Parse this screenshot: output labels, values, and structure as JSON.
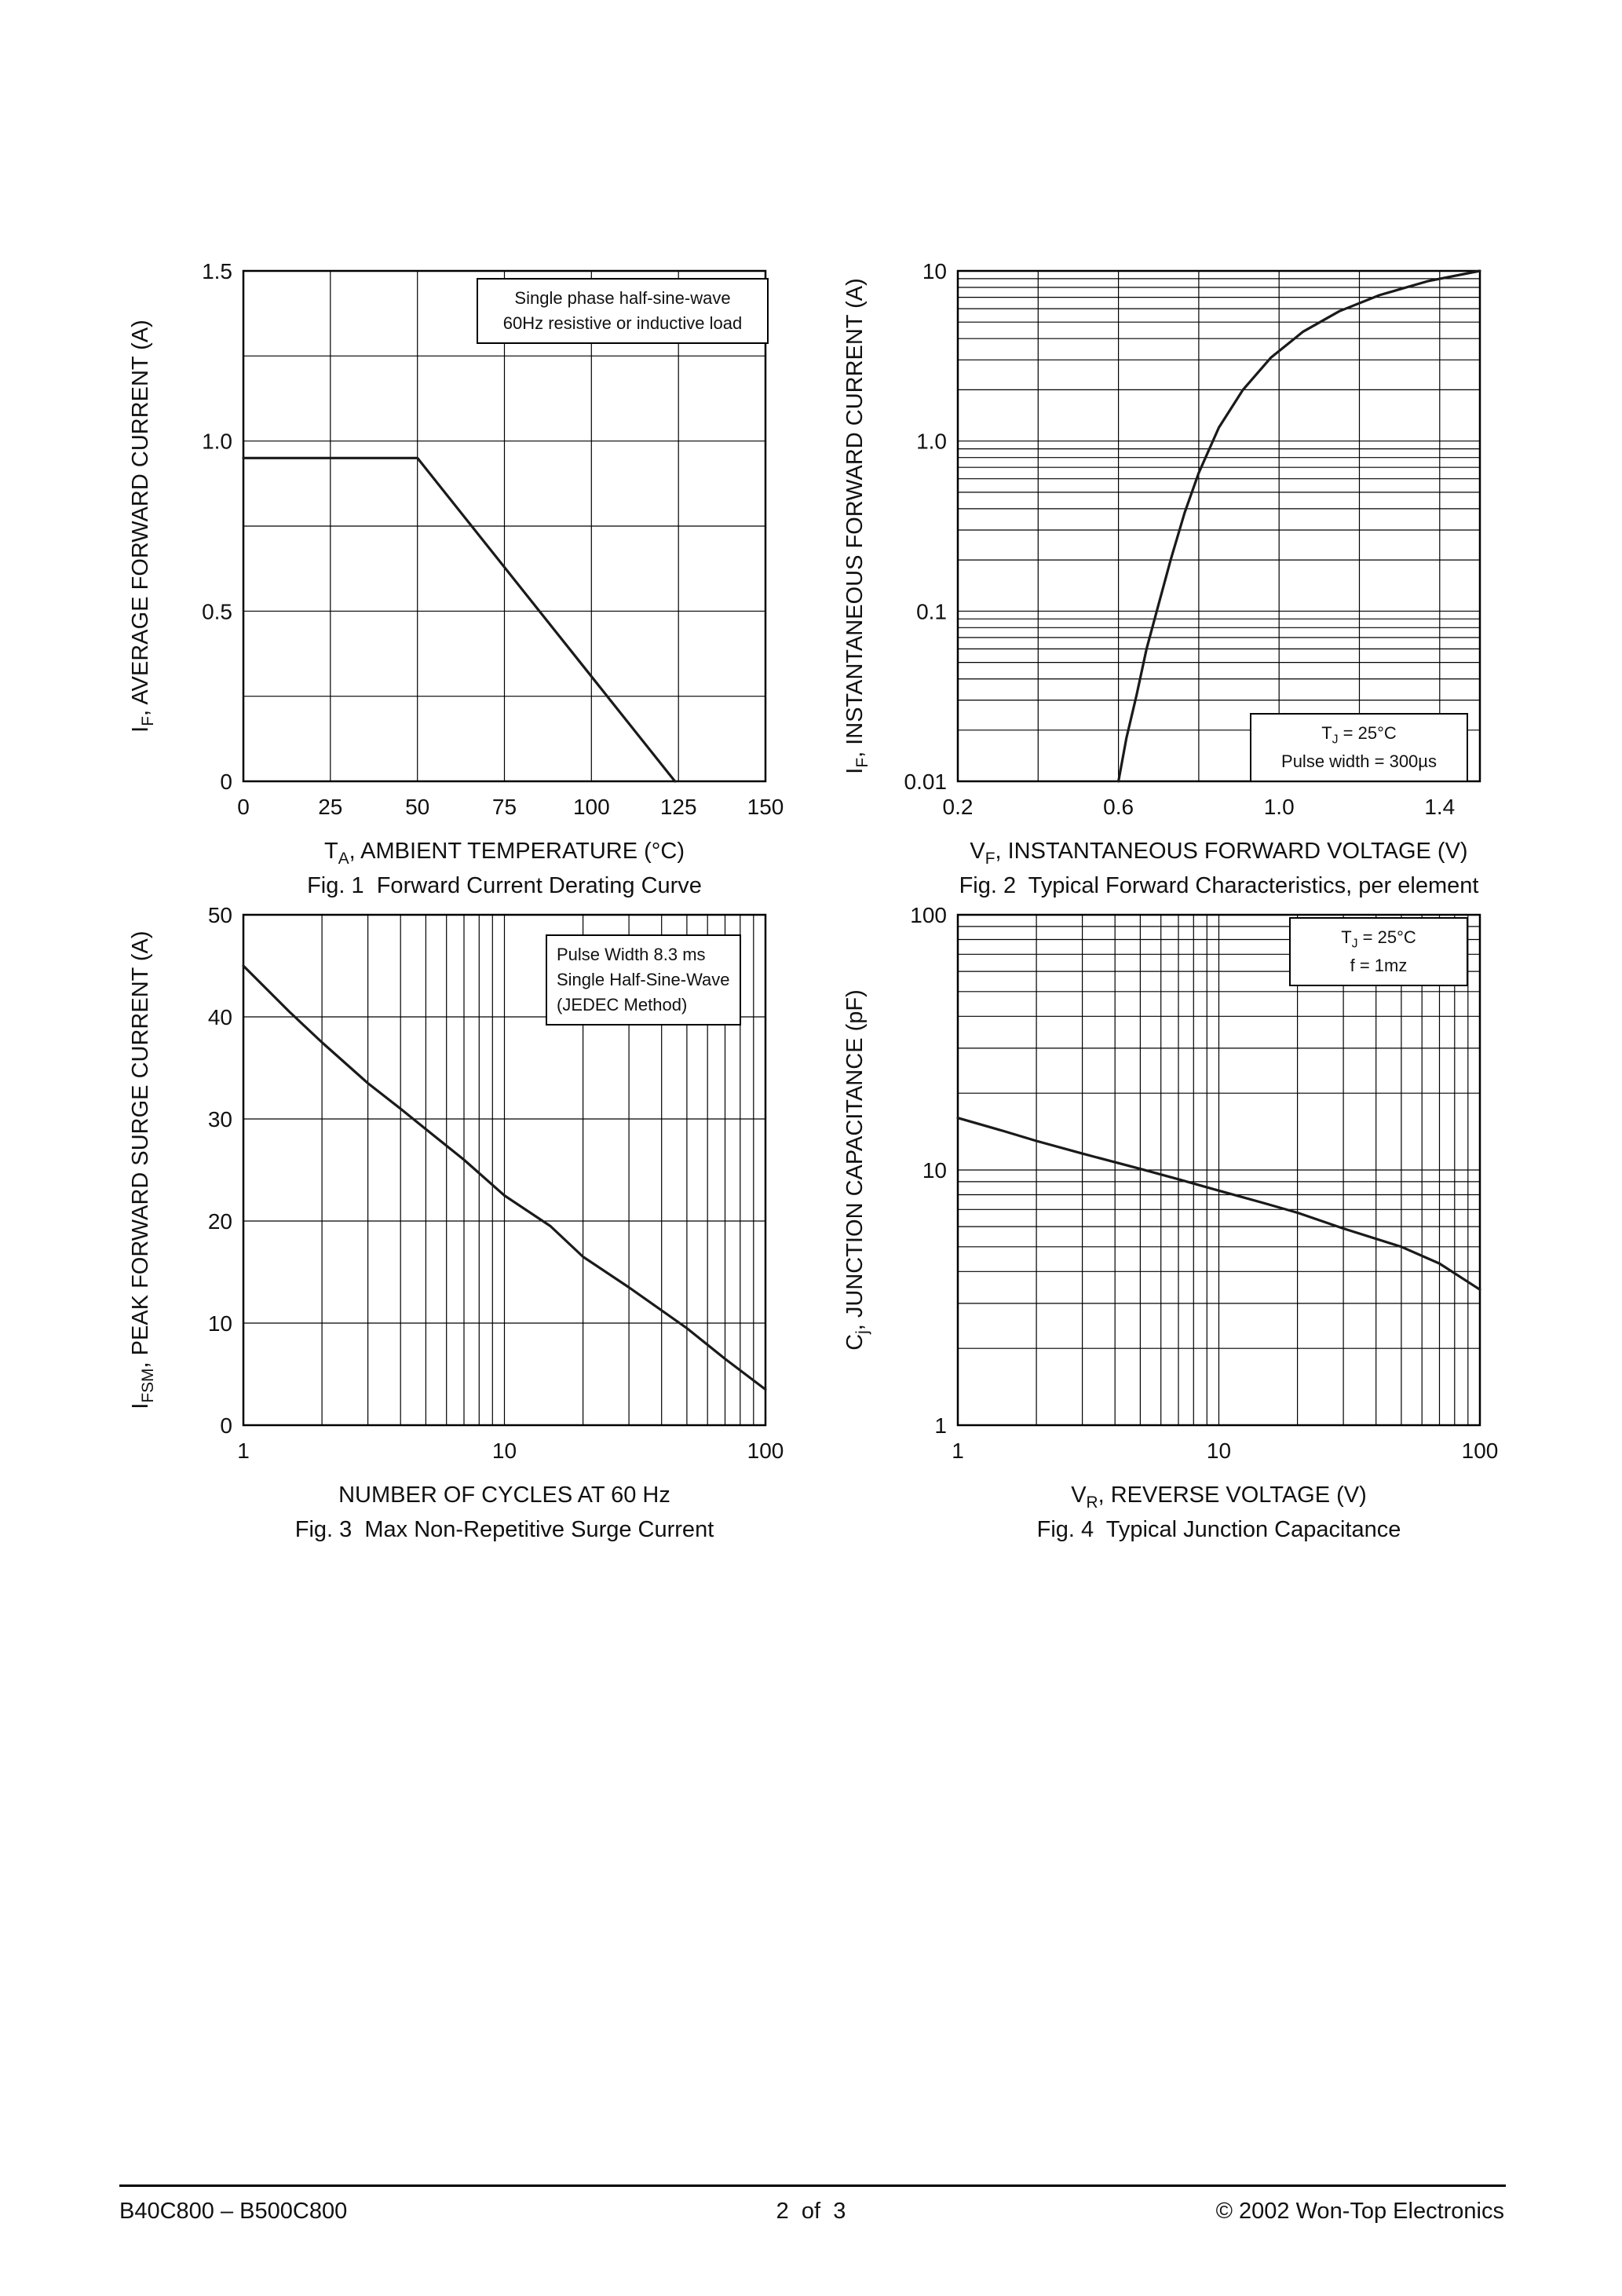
{
  "page": {
    "footer": {
      "left": "B40C800 – B500C800",
      "center": "2  of  3",
      "right": "© 2002 Won-Top Electronics"
    }
  },
  "chart_data": [
    {
      "type": "line",
      "caption": "Fig. 1  Forward Current Derating Curve",
      "xlabel": {
        "pre": "T",
        "sub": "A",
        "rest": ", AMBIENT TEMPERATURE (°C)"
      },
      "ylabel": {
        "pre": "I",
        "sub": "F",
        "rest": ", AVERAGE FORWARD CURRENT (A)"
      },
      "x_scale": "linear",
      "y_scale": "linear",
      "xlim": [
        0,
        150
      ],
      "ylim": [
        0,
        1.5
      ],
      "x_gridlines": [
        25,
        50,
        75,
        100,
        125
      ],
      "y_gridlines": [
        0.25,
        0.5,
        0.75,
        1.0,
        1.25
      ],
      "x_ticks": [
        [
          0,
          "0"
        ],
        [
          25,
          "25"
        ],
        [
          50,
          "50"
        ],
        [
          75,
          "75"
        ],
        [
          100,
          "100"
        ],
        [
          125,
          "125"
        ],
        [
          150,
          "150"
        ]
      ],
      "y_ticks": [
        [
          0,
          "0"
        ],
        [
          0.5,
          "0.5"
        ],
        [
          1.0,
          "1.0"
        ],
        [
          1.5,
          "1.5"
        ]
      ],
      "series": [
        {
          "name": "average forward current derating",
          "points": [
            [
              0,
              0.95
            ],
            [
              50,
              0.95
            ],
            [
              124,
              0
            ]
          ]
        }
      ],
      "annotation": [
        "Single phase half-sine-wave",
        "60Hz resistive or inductive load"
      ]
    },
    {
      "type": "line",
      "caption": "Fig. 2  Typical Forward Characteristics, per element",
      "xlabel": {
        "pre": "V",
        "sub": "F",
        "rest": ", INSTANTANEOUS FORWARD VOLTAGE (V)"
      },
      "ylabel": {
        "pre": "I",
        "sub": "F",
        "rest": ", INSTANTANEOUS FORWARD CURRENT (A)"
      },
      "x_scale": "linear",
      "y_scale": "log",
      "xlim": [
        0.2,
        1.5
      ],
      "ylim": [
        0.01,
        10
      ],
      "x_gridlines": [
        0.4,
        0.6,
        0.8,
        1.0,
        1.2,
        1.4
      ],
      "x_ticks": [
        [
          0.2,
          "0.2"
        ],
        [
          0.6,
          "0.6"
        ],
        [
          1.0,
          "1.0"
        ],
        [
          1.4,
          "1.4"
        ]
      ],
      "y_ticks": [
        [
          0.01,
          "0.01"
        ],
        [
          0.1,
          "0.1"
        ],
        [
          1,
          "1.0"
        ],
        [
          10,
          "10"
        ]
      ],
      "series": [
        {
          "name": "typical forward characteristic",
          "points": [
            [
              0.6,
              0.01
            ],
            [
              0.62,
              0.018
            ],
            [
              0.645,
              0.032
            ],
            [
              0.67,
              0.06
            ],
            [
              0.7,
              0.11
            ],
            [
              0.73,
              0.2
            ],
            [
              0.765,
              0.38
            ],
            [
              0.8,
              0.65
            ],
            [
              0.85,
              1.2
            ],
            [
              0.91,
              2.0
            ],
            [
              0.98,
              3.1
            ],
            [
              1.06,
              4.4
            ],
            [
              1.15,
              5.8
            ],
            [
              1.25,
              7.2
            ],
            [
              1.37,
              8.7
            ],
            [
              1.5,
              10
            ]
          ]
        }
      ],
      "annotation": [
        {
          "pre": "T",
          "sub": "J",
          "rest": " = 25°C"
        },
        "Pulse width = 300µs"
      ]
    },
    {
      "type": "line",
      "caption": "Fig. 3  Max Non-Repetitive Surge Current",
      "xlabel": {
        "pre": "",
        "sub": "",
        "rest": "NUMBER OF CYCLES AT 60 Hz"
      },
      "ylabel": {
        "pre": "I",
        "sub": "FSM",
        "rest": ", PEAK FORWARD SURGE CURRENT (A)"
      },
      "x_scale": "log",
      "y_scale": "linear",
      "xlim": [
        1,
        100
      ],
      "ylim": [
        0,
        50
      ],
      "y_gridlines": [
        10,
        20,
        30,
        40
      ],
      "x_ticks": [
        [
          1,
          "1"
        ],
        [
          10,
          "10"
        ],
        [
          100,
          "100"
        ]
      ],
      "y_ticks": [
        [
          0,
          "0"
        ],
        [
          10,
          "10"
        ],
        [
          20,
          "20"
        ],
        [
          30,
          "30"
        ],
        [
          40,
          "40"
        ],
        [
          50,
          "50"
        ]
      ],
      "series": [
        {
          "name": "peak forward surge current",
          "points": [
            [
              1,
              45
            ],
            [
              1.5,
              40.5
            ],
            [
              2,
              37.5
            ],
            [
              3,
              33.5
            ],
            [
              4,
              31
            ],
            [
              5,
              29
            ],
            [
              7,
              26
            ],
            [
              10,
              22.5
            ],
            [
              15,
              19.5
            ],
            [
              20,
              16.5
            ],
            [
              30,
              13.5
            ],
            [
              50,
              9.5
            ],
            [
              70,
              6.5
            ],
            [
              100,
              3.5
            ]
          ]
        }
      ],
      "annotation": [
        "Pulse Width 8.3 ms",
        "Single Half-Sine-Wave",
        "(JEDEC Method)"
      ]
    },
    {
      "type": "line",
      "caption": "Fig. 4  Typical Junction Capacitance",
      "xlabel": {
        "pre": "V",
        "sub": "R",
        "rest": ", REVERSE VOLTAGE (V)"
      },
      "ylabel": {
        "pre": "C",
        "sub": "j",
        "rest": ", JUNCTION CAPACITANCE (pF)"
      },
      "x_scale": "log",
      "y_scale": "log",
      "xlim": [
        1,
        100
      ],
      "ylim": [
        1,
        100
      ],
      "x_ticks": [
        [
          1,
          "1"
        ],
        [
          10,
          "10"
        ],
        [
          100,
          "100"
        ]
      ],
      "y_ticks": [
        [
          1,
          "1"
        ],
        [
          10,
          "10"
        ],
        [
          100,
          "100"
        ]
      ],
      "series": [
        {
          "name": "junction capacitance",
          "points": [
            [
              1,
              16
            ],
            [
              1.5,
              14.2
            ],
            [
              2,
              13
            ],
            [
              3,
              11.6
            ],
            [
              5,
              10.1
            ],
            [
              7,
              9.2
            ],
            [
              10,
              8.3
            ],
            [
              15,
              7.4
            ],
            [
              20,
              6.8
            ],
            [
              30,
              5.9
            ],
            [
              50,
              5.0
            ],
            [
              70,
              4.3
            ],
            [
              100,
              3.4
            ]
          ]
        }
      ],
      "annotation": [
        {
          "pre": "T",
          "sub": "J",
          "rest": " = 25°C"
        },
        "f = 1mz"
      ]
    }
  ]
}
